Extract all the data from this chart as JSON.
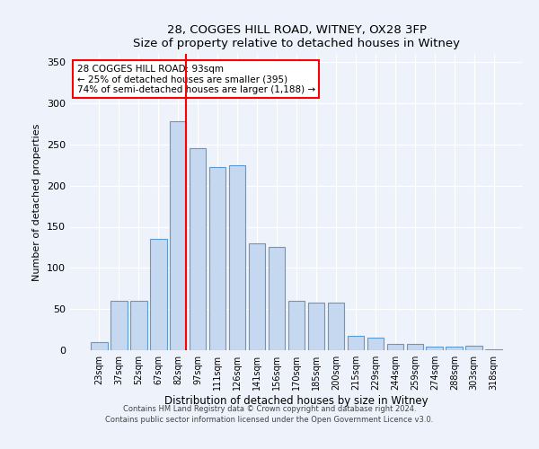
{
  "title": "28, COGGES HILL ROAD, WITNEY, OX28 3FP",
  "subtitle": "Size of property relative to detached houses in Witney",
  "xlabel": "Distribution of detached houses by size in Witney",
  "ylabel": "Number of detached properties",
  "bar_labels": [
    "23sqm",
    "37sqm",
    "52sqm",
    "67sqm",
    "82sqm",
    "97sqm",
    "111sqm",
    "126sqm",
    "141sqm",
    "156sqm",
    "170sqm",
    "185sqm",
    "200sqm",
    "215sqm",
    "229sqm",
    "244sqm",
    "259sqm",
    "274sqm",
    "288sqm",
    "303sqm",
    "318sqm"
  ],
  "bar_values": [
    10,
    60,
    60,
    135,
    278,
    245,
    222,
    225,
    130,
    125,
    60,
    58,
    58,
    18,
    15,
    8,
    8,
    4,
    4,
    6,
    1
  ],
  "bar_color": "#c5d8f0",
  "bar_edge_color": "#5b9bd5",
  "vline_color": "red",
  "annotation_title": "28 COGGES HILL ROAD: 93sqm",
  "annotation_line2": "← 25% of detached houses are smaller (395)",
  "annotation_line3": "74% of semi-detached houses are larger (1,188) →",
  "annotation_box_color": "white",
  "annotation_box_edge_color": "red",
  "ylim": [
    0,
    360
  ],
  "yticks": [
    0,
    50,
    100,
    150,
    200,
    250,
    300,
    350
  ],
  "footer1": "Contains HM Land Registry data © Crown copyright and database right 2024.",
  "footer2": "Contains public sector information licensed under the Open Government Licence v3.0.",
  "bg_color": "#eef2fb",
  "plot_bg_color": "#eef2fb"
}
